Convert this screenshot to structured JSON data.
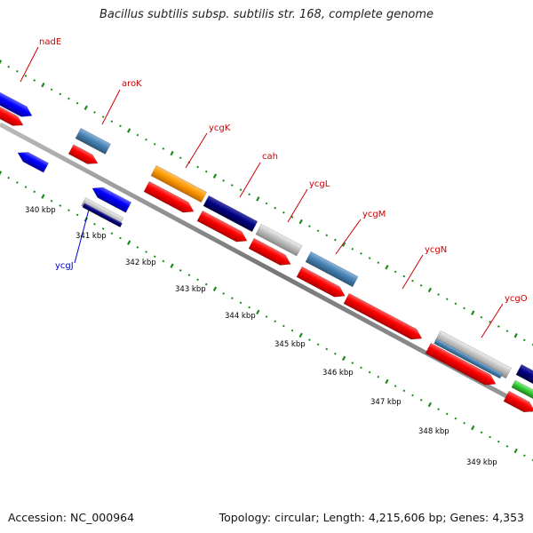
{
  "title": "Bacillus subtilis subsp. subtilis str. 168, complete genome",
  "accession": "Accession: NC_000964",
  "summary": "Topology: circular; Length: 4,215,606 bp; Genes: 4,353",
  "gene_labels": [
    {
      "name": "nadE",
      "color": "#cc0000"
    },
    {
      "name": "aroK",
      "color": "#cc0000"
    },
    {
      "name": "ycgK",
      "color": "#cc0000"
    },
    {
      "name": "cah",
      "color": "#cc0000"
    },
    {
      "name": "ycgL",
      "color": "#cc0000"
    },
    {
      "name": "ycgM",
      "color": "#cc0000"
    },
    {
      "name": "ycgN",
      "color": "#cc0000"
    },
    {
      "name": "ycgO",
      "color": "#cc0000"
    },
    {
      "name": "ycgJ",
      "color": "#0000cc"
    }
  ],
  "scale_labels": [
    "340 kbp",
    "341 kbp",
    "342 kbp",
    "343 kbp",
    "344 kbp",
    "345 kbp",
    "346 kbp",
    "347 kbp",
    "348 kbp",
    "349 kbp"
  ],
  "colors": {
    "red": "#ff1010",
    "blue": "#1010ff",
    "steel": "#4682b4",
    "orange": "#ff9900",
    "navy": "#000080",
    "gray": "#c0c0c0",
    "green": "#33cc33",
    "tick": "#1a8a1a",
    "backbone": "#888888"
  }
}
